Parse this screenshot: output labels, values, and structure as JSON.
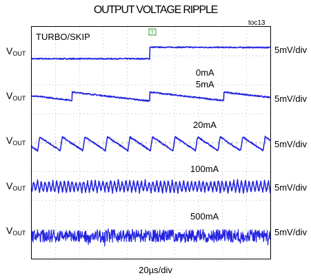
{
  "chart_data": {
    "type": "line",
    "title": "OUTPUT VOLTAGE RIPPLE",
    "figure_id": "toc13",
    "trigger_label": "TURBO/SKIP",
    "trigger_marker": "T",
    "xlabel": "20µs/div",
    "x_divisions": 10,
    "y_divisions": 8,
    "grid": true,
    "trace_color": "#2424e0",
    "traces": [
      {
        "channel": "V",
        "channel_sub": "OUT",
        "scale": "5mV/div",
        "load": "0mA",
        "shape": "step",
        "step_at_div": 4.95,
        "step_mv": 3.5
      },
      {
        "channel": "V",
        "channel_sub": "OUT",
        "scale": "5mV/div",
        "load": "5mA",
        "shape": "sawtooth",
        "jumps_at_div": [
          1.7,
          4.95,
          8.05
        ],
        "ramp_mv": 2.6,
        "jump_mv": 3.8
      },
      {
        "channel": "V",
        "channel_sub": "OUT",
        "scale": "5mV/div",
        "load": "20mA",
        "shape": "sawtooth",
        "period_div": 0.945,
        "first_jump_div": 0.25,
        "amplitude_mv": 4.2
      },
      {
        "channel": "V",
        "channel_sub": "OUT",
        "scale": "5mV/div",
        "load": "100mA",
        "shape": "ripple",
        "cycles": 62,
        "amplitude_mv": 3.4
      },
      {
        "channel": "V",
        "channel_sub": "OUT",
        "scale": "5mV/div",
        "load": "500mA",
        "shape": "noise",
        "amplitude_mv": 3.2
      }
    ]
  }
}
